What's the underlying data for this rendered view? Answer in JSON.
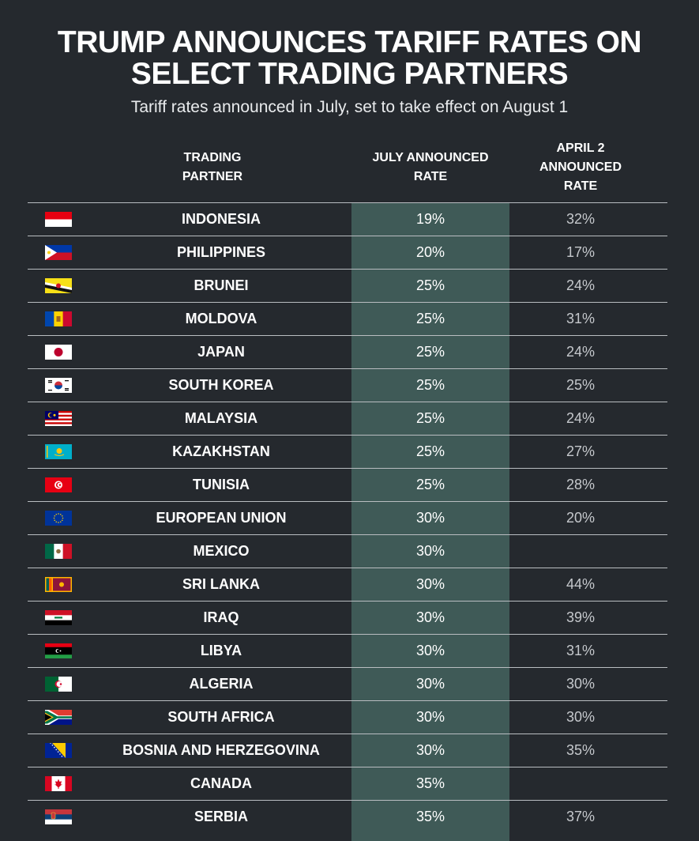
{
  "title_line1": "TRUMP ANNOUNCES TARIFF RATES ON",
  "title_line2": "SELECT TRADING PARTNERS",
  "subtitle": "Tariff rates announced in July, set to take effect on August 1",
  "columns": {
    "partner_line1": "TRADING",
    "partner_line2": "PARTNER",
    "july_line1": "JULY ANNOUNCED",
    "july_line2": "RATE",
    "april_line1": "APRIL 2",
    "april_line2": "ANNOUNCED",
    "april_line3": "RATE"
  },
  "colors": {
    "background": "#25292e",
    "highlight_column": "#3f5a57",
    "divider": "#b9bdc1"
  },
  "chart_data": {
    "type": "table",
    "columns": [
      "TRADING PARTNER",
      "JULY ANNOUNCED RATE",
      "APRIL 2 ANNOUNCED RATE"
    ],
    "rows": [
      {
        "partner": "INDONESIA",
        "flag": "indonesia-flag-icon",
        "july": "19%",
        "april": "32%"
      },
      {
        "partner": "PHILIPPINES",
        "flag": "philippines-flag-icon",
        "july": "20%",
        "april": "17%"
      },
      {
        "partner": "BRUNEI",
        "flag": "brunei-flag-icon",
        "july": "25%",
        "april": "24%"
      },
      {
        "partner": "MOLDOVA",
        "flag": "moldova-flag-icon",
        "july": "25%",
        "april": "31%"
      },
      {
        "partner": "JAPAN",
        "flag": "japan-flag-icon",
        "july": "25%",
        "april": "24%"
      },
      {
        "partner": "SOUTH KOREA",
        "flag": "south-korea-flag-icon",
        "july": "25%",
        "april": "25%"
      },
      {
        "partner": "MALAYSIA",
        "flag": "malaysia-flag-icon",
        "july": "25%",
        "april": "24%"
      },
      {
        "partner": "KAZAKHSTAN",
        "flag": "kazakhstan-flag-icon",
        "july": "25%",
        "april": "27%"
      },
      {
        "partner": "TUNISIA",
        "flag": "tunisia-flag-icon",
        "july": "25%",
        "april": "28%"
      },
      {
        "partner": "EUROPEAN UNION",
        "flag": "european-union-flag-icon",
        "july": "30%",
        "april": "20%"
      },
      {
        "partner": "MEXICO",
        "flag": "mexico-flag-icon",
        "july": "30%",
        "april": ""
      },
      {
        "partner": "SRI LANKA",
        "flag": "sri-lanka-flag-icon",
        "july": "30%",
        "april": "44%"
      },
      {
        "partner": "IRAQ",
        "flag": "iraq-flag-icon",
        "july": "30%",
        "april": "39%"
      },
      {
        "partner": "LIBYA",
        "flag": "libya-flag-icon",
        "july": "30%",
        "april": "31%"
      },
      {
        "partner": "ALGERIA",
        "flag": "algeria-flag-icon",
        "july": "30%",
        "april": "30%"
      },
      {
        "partner": "SOUTH AFRICA",
        "flag": "south-africa-flag-icon",
        "july": "30%",
        "april": "30%"
      },
      {
        "partner": "BOSNIA AND HERZEGOVINA",
        "flag": "bosnia-flag-icon",
        "july": "30%",
        "april": "35%"
      },
      {
        "partner": "CANADA",
        "flag": "canada-flag-icon",
        "july": "35%",
        "april": ""
      },
      {
        "partner": "SERBIA",
        "flag": "serbia-flag-icon",
        "july": "35%",
        "april": "37%"
      }
    ]
  }
}
